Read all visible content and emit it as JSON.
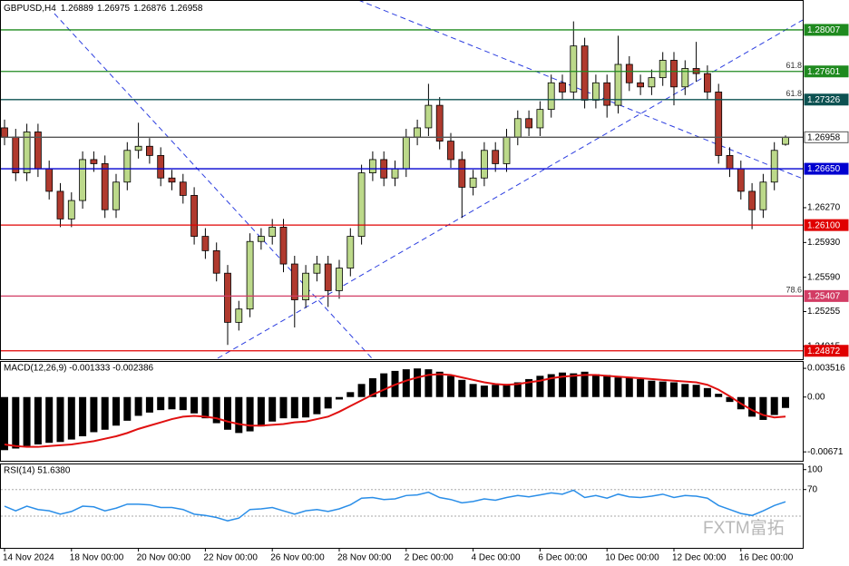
{
  "chart_data": [
    {
      "type": "candlestick",
      "title": "GBPUSD,H4",
      "x": [
        "14 Nov 2024",
        null,
        null,
        null,
        null,
        null,
        "18 Nov 00:00",
        null,
        null,
        null,
        null,
        null,
        "20 Nov 00:00",
        null,
        null,
        null,
        null,
        null,
        "22 Nov 00:00",
        null,
        null,
        null,
        null,
        null,
        "26 Nov 00:00",
        null,
        null,
        null,
        null,
        null,
        "28 Nov 00:00",
        null,
        null,
        null,
        null,
        null,
        "2 Dec 00:00",
        null,
        null,
        null,
        null,
        null,
        "4 Dec 00:00",
        null,
        null,
        null,
        null,
        null,
        "6 Dec 00:00",
        null,
        null,
        null,
        null,
        null,
        "10 Dec 00:00",
        null,
        null,
        null,
        null,
        null,
        "12 Dec 00:00",
        null,
        null,
        null,
        null,
        null,
        "16 Dec 00:00",
        null,
        null,
        null,
        null
      ],
      "open": [
        1.2705,
        1.2696,
        1.2661,
        1.2701,
        1.2665,
        1.2643,
        1.2616,
        1.2634,
        1.2674,
        1.267,
        1.2625,
        1.2652,
        1.2683,
        1.2687,
        1.2678,
        1.2656,
        1.2652,
        1.2639,
        1.2599,
        1.2585,
        1.2563,
        1.2515,
        1.2528,
        1.2594,
        1.2599,
        1.2608,
        1.2572,
        1.2537,
        1.2563,
        1.2572,
        1.2546,
        1.2568,
        1.2599,
        1.2661,
        1.2674,
        1.2656,
        1.2665,
        1.2696,
        1.2705,
        1.2727,
        1.2692,
        1.2674,
        1.2647,
        1.2656,
        1.2683,
        1.267,
        1.2696,
        1.2714,
        1.2705,
        1.2723,
        1.2749,
        1.274,
        1.2785,
        1.2732,
        1.2749,
        1.2727,
        1.2767,
        1.2749,
        1.2745,
        1.2754,
        1.2771,
        1.2745,
        1.2763,
        1.2758,
        1.274,
        1.2678,
        1.2665,
        1.2643,
        1.2625,
        1.2652,
        1.26889
      ],
      "high": [
        1.2713,
        1.2704,
        1.2709,
        1.2709,
        1.2673,
        1.2651,
        1.2642,
        1.2682,
        1.2682,
        1.2678,
        1.266,
        1.2691,
        1.271,
        1.2695,
        1.2686,
        1.2664,
        1.266,
        1.2647,
        1.2607,
        1.2593,
        1.2571,
        1.2536,
        1.2602,
        1.2607,
        1.2616,
        1.2616,
        1.258,
        1.2571,
        1.258,
        1.258,
        1.2576,
        1.2607,
        1.2669,
        1.2682,
        1.2682,
        1.2673,
        1.2704,
        1.2713,
        1.2748,
        1.2735,
        1.27,
        1.2682,
        1.2664,
        1.2691,
        1.2691,
        1.2704,
        1.2722,
        1.2722,
        1.2731,
        1.2757,
        1.2757,
        1.2809,
        1.2793,
        1.2757,
        1.2757,
        1.2795,
        1.2775,
        1.2757,
        1.2762,
        1.2779,
        1.2779,
        1.2771,
        1.2789,
        1.2766,
        1.2748,
        1.2686,
        1.2673,
        1.2651,
        1.266,
        1.2691,
        1.26975
      ],
      "low": [
        1.2688,
        1.2653,
        1.2653,
        1.2657,
        1.2635,
        1.2608,
        1.2608,
        1.2626,
        1.2662,
        1.2617,
        1.2617,
        1.2644,
        1.2675,
        1.267,
        1.2648,
        1.2644,
        1.2631,
        1.2591,
        1.2577,
        1.2555,
        1.2493,
        1.2507,
        1.252,
        1.2586,
        1.2591,
        1.2564,
        1.251,
        1.2529,
        1.2555,
        1.253,
        1.2538,
        1.256,
        1.2591,
        1.2653,
        1.2648,
        1.2648,
        1.2657,
        1.2688,
        1.2697,
        1.2684,
        1.2666,
        1.2617,
        1.2639,
        1.2648,
        1.2662,
        1.2662,
        1.2688,
        1.2697,
        1.2697,
        1.2715,
        1.2732,
        1.2732,
        1.2724,
        1.2724,
        1.2715,
        1.2719,
        1.2741,
        1.2737,
        1.2737,
        1.2746,
        1.2727,
        1.2737,
        1.275,
        1.2732,
        1.267,
        1.2657,
        1.2635,
        1.2606,
        1.2617,
        1.2644,
        1.26876
      ],
      "close": [
        1.2696,
        1.2661,
        1.2701,
        1.2665,
        1.2643,
        1.2616,
        1.2634,
        1.2674,
        1.267,
        1.2625,
        1.2652,
        1.2683,
        1.2687,
        1.2678,
        1.2656,
        1.2652,
        1.2639,
        1.2599,
        1.2585,
        1.2563,
        1.2515,
        1.2528,
        1.2594,
        1.2599,
        1.2608,
        1.2572,
        1.2537,
        1.2563,
        1.2572,
        1.2546,
        1.2568,
        1.2599,
        1.2661,
        1.2674,
        1.2656,
        1.2665,
        1.2696,
        1.2705,
        1.2727,
        1.2692,
        1.2674,
        1.2647,
        1.2656,
        1.2683,
        1.267,
        1.2696,
        1.2714,
        1.2705,
        1.2723,
        1.2749,
        1.274,
        1.2785,
        1.2732,
        1.2749,
        1.2727,
        1.2767,
        1.2749,
        1.2745,
        1.2754,
        1.2771,
        1.2745,
        1.2763,
        1.2758,
        1.274,
        1.2678,
        1.2665,
        1.2643,
        1.2625,
        1.2652,
        1.2683,
        1.26958
      ],
      "bull_color": "#bcd98a",
      "bear_color": "#b03a2e",
      "ylim": [
        1.2479,
        1.2829
      ],
      "yticks": [
        {
          "value": 1.2627,
          "label": "1.26270"
        },
        {
          "value": 1.2593,
          "label": "1.25930"
        },
        {
          "value": 1.2559,
          "label": "1.25590"
        },
        {
          "value": 1.25255,
          "label": "1.25255"
        },
        {
          "value": 1.24915,
          "label": "1.24915"
        }
      ],
      "levels": [
        {
          "value": 1.28007,
          "color": "#1f8a1f",
          "text_color": "#ffffff"
        },
        {
          "value": 1.27601,
          "color": "#1f8a1f",
          "text_color": "#ffffff",
          "fib": "61.8"
        },
        {
          "value": 1.27326,
          "color": "#0d5252",
          "text_color": "#ffffff",
          "fib": "61.8"
        },
        {
          "value": 1.26958,
          "color": "#555555",
          "text_color": "#000000",
          "box_fill": "#ffffff"
        },
        {
          "value": 1.2665,
          "label": "1.26650",
          "color": "#0000d0",
          "text_color": "#ffffff"
        },
        {
          "value": 1.261,
          "label": "1.26100",
          "color": "#e00000",
          "text_color": "#ffffff"
        },
        {
          "value": 1.25407,
          "color": "#d23c64",
          "text_color": "#ffffff",
          "fib": "78.6"
        },
        {
          "value": 1.24872,
          "color": "#e00000",
          "text_color": "#ffffff"
        }
      ]
    },
    {
      "type": "macd",
      "title": "MACD(12,26,9) -0.001333 -0.002386",
      "color": "#000000",
      "values": [
        -0.0065,
        -0.0063,
        -0.006,
        -0.0058,
        -0.0056,
        -0.0055,
        -0.0052,
        -0.0048,
        -0.0043,
        -0.004,
        -0.0035,
        -0.0029,
        -0.0023,
        -0.0019,
        -0.0016,
        -0.0015,
        -0.0016,
        -0.002,
        -0.0026,
        -0.0032,
        -0.004,
        -0.0044,
        -0.0042,
        -0.0036,
        -0.003,
        -0.0026,
        -0.0026,
        -0.0025,
        -0.0021,
        -0.0014,
        -0.0003,
        0.0006,
        0.0016,
        0.0023,
        0.0029,
        0.0032,
        0.0034,
        0.0035,
        0.0034,
        0.0031,
        0.0026,
        0.0021,
        0.0016,
        0.0014,
        0.0015,
        0.0016,
        0.0018,
        0.0022,
        0.0026,
        0.0028,
        0.003,
        0.0029,
        0.0031,
        0.0028,
        0.0027,
        0.0024,
        0.0024,
        0.0022,
        0.002,
        0.0019,
        0.0018,
        0.0016,
        0.0015,
        0.0011,
        0.0004,
        -0.0006,
        -0.0015,
        -0.0024,
        -0.0028,
        -0.0022,
        -0.001333
      ],
      "signal": {
        "color": "#e01010",
        "values": [
          -0.0058,
          -0.006,
          -0.0061,
          -0.0061,
          -0.006,
          -0.0059,
          -0.0058,
          -0.0056,
          -0.0054,
          -0.0051,
          -0.0048,
          -0.0044,
          -0.0039,
          -0.0035,
          -0.0031,
          -0.0027,
          -0.0024,
          -0.0023,
          -0.0024,
          -0.0026,
          -0.003,
          -0.0033,
          -0.0035,
          -0.0035,
          -0.0034,
          -0.0033,
          -0.0031,
          -0.003,
          -0.0027,
          -0.0024,
          -0.0018,
          -0.0011,
          -0.0004,
          0.0003,
          0.0009,
          0.0015,
          0.002,
          0.0024,
          0.0027,
          0.0028,
          0.0027,
          0.0024,
          0.0021,
          0.0018,
          0.0016,
          0.0015,
          0.0016,
          0.0018,
          0.002,
          0.0023,
          0.0025,
          0.0026,
          0.0027,
          0.0027,
          0.0026,
          0.0025,
          0.0024,
          0.0023,
          0.0022,
          0.0021,
          0.002,
          0.0019,
          0.0018,
          0.0015,
          0.0009,
          0.0001,
          -0.0008,
          -0.0016,
          -0.0022,
          -0.0025,
          -0.002386
        ]
      },
      "ylim": [
        -0.0078,
        0.0043
      ],
      "yticks": [
        0.003516,
        {
          "value": 0,
          "label": "0.00"
        },
        -0.00671
      ]
    },
    {
      "type": "rsi",
      "title": "RSI(14) 51.6380",
      "color": "#2a8ee8",
      "values": [
        45,
        38,
        45,
        40,
        38,
        33,
        37,
        45,
        44,
        38,
        42,
        48,
        48,
        47,
        43,
        43,
        40,
        33,
        31,
        28,
        23,
        27,
        40,
        41,
        43,
        38,
        33,
        38,
        40,
        37,
        41,
        47,
        57,
        58,
        55,
        56,
        61,
        62,
        66,
        58,
        55,
        50,
        52,
        56,
        54,
        58,
        61,
        59,
        62,
        65,
        63,
        69,
        58,
        61,
        57,
        63,
        59,
        58,
        60,
        63,
        58,
        61,
        60,
        57,
        46,
        40,
        34,
        31,
        38,
        46,
        51.638
      ],
      "ylim": [
        -17.7,
        107.8
      ],
      "yticks": [
        100,
        70
      ],
      "levels": [
        70,
        30
      ]
    }
  ],
  "watermark": "FXTM富拓"
}
